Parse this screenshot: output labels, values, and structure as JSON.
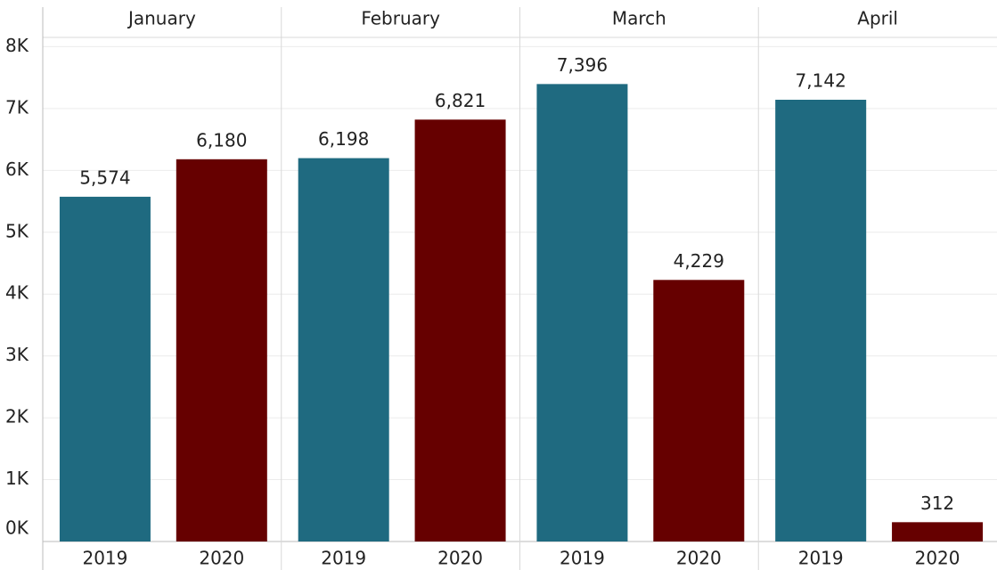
{
  "chart_data": {
    "type": "bar",
    "categories": [
      "January",
      "February",
      "March",
      "April"
    ],
    "series": [
      {
        "name": "2019",
        "color": "#1f6a80",
        "values": [
          5574,
          6198,
          7396,
          7142
        ],
        "value_labels": [
          "5,574",
          "6,198",
          "7,396",
          "7,142"
        ]
      },
      {
        "name": "2020",
        "color": "#660000",
        "values": [
          6180,
          6821,
          4229,
          312
        ],
        "value_labels": [
          "6,180",
          "6,821",
          "4,229",
          "312"
        ]
      }
    ],
    "ylim": [
      0,
      8150
    ],
    "yticks": [
      {
        "value": 0,
        "label": "0K"
      },
      {
        "value": 1000,
        "label": "1K"
      },
      {
        "value": 2000,
        "label": "2K"
      },
      {
        "value": 3000,
        "label": "3K"
      },
      {
        "value": 4000,
        "label": "4K"
      },
      {
        "value": 5000,
        "label": "5K"
      },
      {
        "value": 6000,
        "label": "6K"
      },
      {
        "value": 7000,
        "label": "7K"
      },
      {
        "value": 8000,
        "label": "8K"
      }
    ],
    "grid": true
  }
}
